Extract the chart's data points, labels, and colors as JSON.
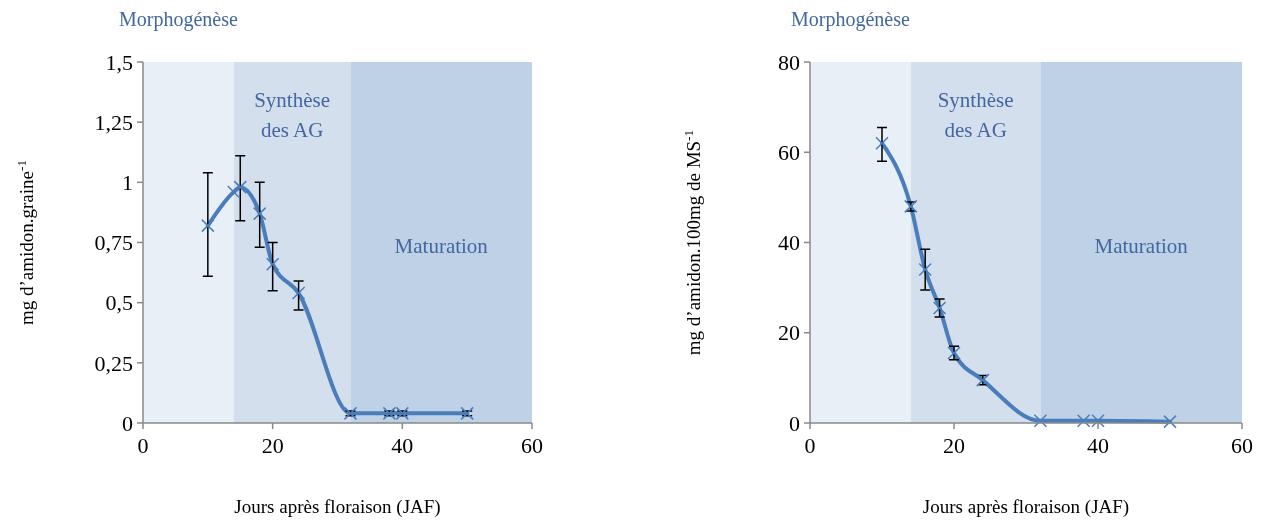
{
  "chart_data": [
    {
      "type": "line",
      "xlabel": "Jours après floraison (JAF)",
      "ylabel": "mg d’amidon.graine$^{-1}$",
      "xlim": [
        0,
        60
      ],
      "xticks": [
        0,
        20,
        40,
        60
      ],
      "ylim": [
        0,
        1.5
      ],
      "yticks": [
        0,
        {
          "value": 0.25,
          "label": "0,25"
        },
        {
          "value": 0.5,
          "label": "0,5"
        },
        {
          "value": 0.75,
          "label": "0,75"
        },
        1,
        {
          "value": 1.25,
          "label": "1,25"
        },
        {
          "value": 1.5,
          "label": "1,5"
        }
      ],
      "marker": "cross",
      "line_style": "solid",
      "bands": [
        {
          "axis": "x",
          "from": 0,
          "to": 14,
          "label": "Morphogénèse",
          "color": "#e9eff7"
        },
        {
          "axis": "x",
          "from": 14,
          "to": 32,
          "label": "Synthèse des AG",
          "color": "#d4dfee"
        },
        {
          "axis": "x",
          "from": 32,
          "to": 60,
          "label": "Maturation",
          "color": "#bfd1e6"
        }
      ],
      "series": [
        {
          "color": "#4a7ebb",
          "x": [
            10,
            14,
            15,
            18,
            20,
            24,
            32,
            38,
            40,
            50
          ],
          "values": [
            0.82,
            0.96,
            0.98,
            0.87,
            0.66,
            0.54,
            0.04,
            0.04,
            0.04,
            0.04
          ],
          "errors": [
            [
              0.61,
              1.04
            ],
            null,
            [
              0.84,
              1.11
            ],
            [
              0.73,
              1.0
            ],
            [
              0.55,
              0.75
            ],
            [
              0.47,
              0.59
            ],
            0.01,
            0.01,
            0.01,
            0.01
          ]
        }
      ]
    },
    {
      "type": "line",
      "xlabel": "Jours après floraison (JAF)",
      "ylabel": "mg d’amidon.100mg de MS$^{-1}$",
      "xlim": [
        0,
        60
      ],
      "xticks": [
        0,
        20,
        40,
        60
      ],
      "ylim": [
        0,
        80
      ],
      "yticks": [
        0,
        20,
        40,
        60,
        80
      ],
      "marker": "cross",
      "line_style": "solid",
      "bands": [
        {
          "axis": "x",
          "from": 0,
          "to": 14,
          "label": "Morphogénèse",
          "color": "#e9eff7"
        },
        {
          "axis": "x",
          "from": 14,
          "to": 32,
          "label": "Synthèse des AG",
          "color": "#d4dfee"
        },
        {
          "axis": "x",
          "from": 32,
          "to": 60,
          "label": "Maturation",
          "color": "#bfd1e6"
        }
      ],
      "series": [
        {
          "color": "#4a7ebb",
          "x": [
            10,
            14,
            16,
            18,
            20,
            24,
            32,
            38,
            40,
            50
          ],
          "values": [
            62,
            48,
            34,
            25.5,
            15.5,
            9.5,
            0.5,
            0.5,
            0.5,
            0.3
          ],
          "errors": [
            [
              58,
              65.5
            ],
            1,
            [
              29.5,
              38.5
            ],
            2,
            1.5,
            1,
            null,
            null,
            null,
            null
          ]
        }
      ]
    }
  ]
}
